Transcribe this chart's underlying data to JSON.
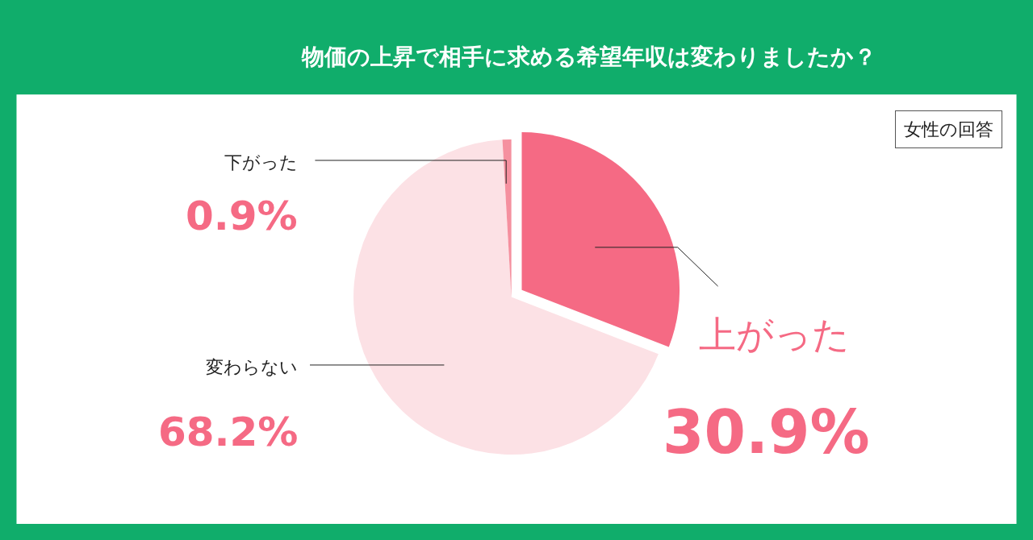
{
  "chart_data": {
    "type": "pie",
    "title": "物価の上昇で相手に求める希望年収は変わりましたか？",
    "subtitle": "女性の回答",
    "categories": [
      "上がった",
      "変わらない",
      "下がった"
    ],
    "values": [
      30.9,
      68.2,
      0.9
    ],
    "colors": [
      "#f56a84",
      "#fce1e5",
      "#f5909f"
    ],
    "value_labels": [
      "30.9%",
      "68.2%",
      "0.9%"
    ],
    "legend": false
  }
}
